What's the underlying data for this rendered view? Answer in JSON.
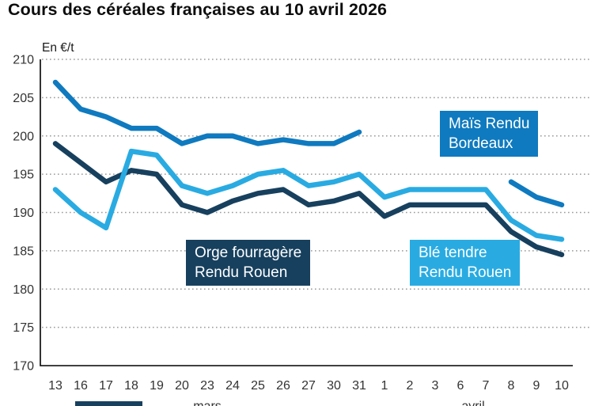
{
  "title": "Cours des céréales françaises au 10 avril 2026",
  "y_axis_unit_label": "En €/t",
  "chart_data": {
    "type": "line",
    "title": "Cours des céréales françaises au 10 avril 2026",
    "ylabel": "En €/t",
    "ylim": [
      170,
      210
    ],
    "y_ticks": [
      210,
      205,
      200,
      195,
      190,
      185,
      180,
      175,
      170
    ],
    "grid": "horizontal-dotted",
    "legend_position": "inline-boxes",
    "x_tick_labels": [
      "13",
      "16",
      "17",
      "18",
      "19",
      "20",
      "23",
      "24",
      "25",
      "26",
      "27",
      "30",
      "31",
      "1",
      "2",
      "3",
      "6",
      "7",
      "8",
      "9",
      "10"
    ],
    "month_labels": [
      {
        "label": "mars",
        "position_index": 6
      },
      {
        "label": "avril",
        "position_index": 16.5
      }
    ],
    "series": [
      {
        "name": "Orge fourragère Rendu Rouen",
        "color": "#17405e",
        "values": [
          199,
          196.5,
          194,
          195.5,
          195,
          191,
          190,
          191.5,
          192.5,
          193,
          191,
          191.5,
          192.5,
          189.5,
          191,
          191,
          191,
          191,
          187.5,
          185.5,
          184.5
        ]
      },
      {
        "name": "Maïs Rendu Bordeaux",
        "color": "#0f7abf",
        "values": [
          207,
          203.5,
          202.5,
          201,
          201,
          199,
          200,
          200,
          199,
          199.5,
          199,
          199,
          200.5,
          null,
          null,
          null,
          null,
          null,
          194,
          192,
          191
        ]
      },
      {
        "name": "Blé tendre Rendu Rouen",
        "color": "#29abe2",
        "values": [
          193,
          190,
          188,
          198,
          197.5,
          193.5,
          192.5,
          193.5,
          195,
          195.5,
          193.5,
          194,
          195,
          192,
          193,
          193,
          193,
          193,
          189,
          187,
          186.5
        ]
      }
    ],
    "series_labels": [
      {
        "line1": "Maïs Rendu",
        "line2": "Bordeaux",
        "bg": "#0f7abf"
      },
      {
        "line1": "Orge fourragère",
        "line2": "Rendu Rouen",
        "bg": "#17405e"
      },
      {
        "line1": "Blé tendre",
        "line2": "Rendu Rouen",
        "bg": "#29abe2"
      }
    ],
    "axis_color": "#000000",
    "gridline_color": "#999999",
    "tick_label_color": "#333333"
  }
}
